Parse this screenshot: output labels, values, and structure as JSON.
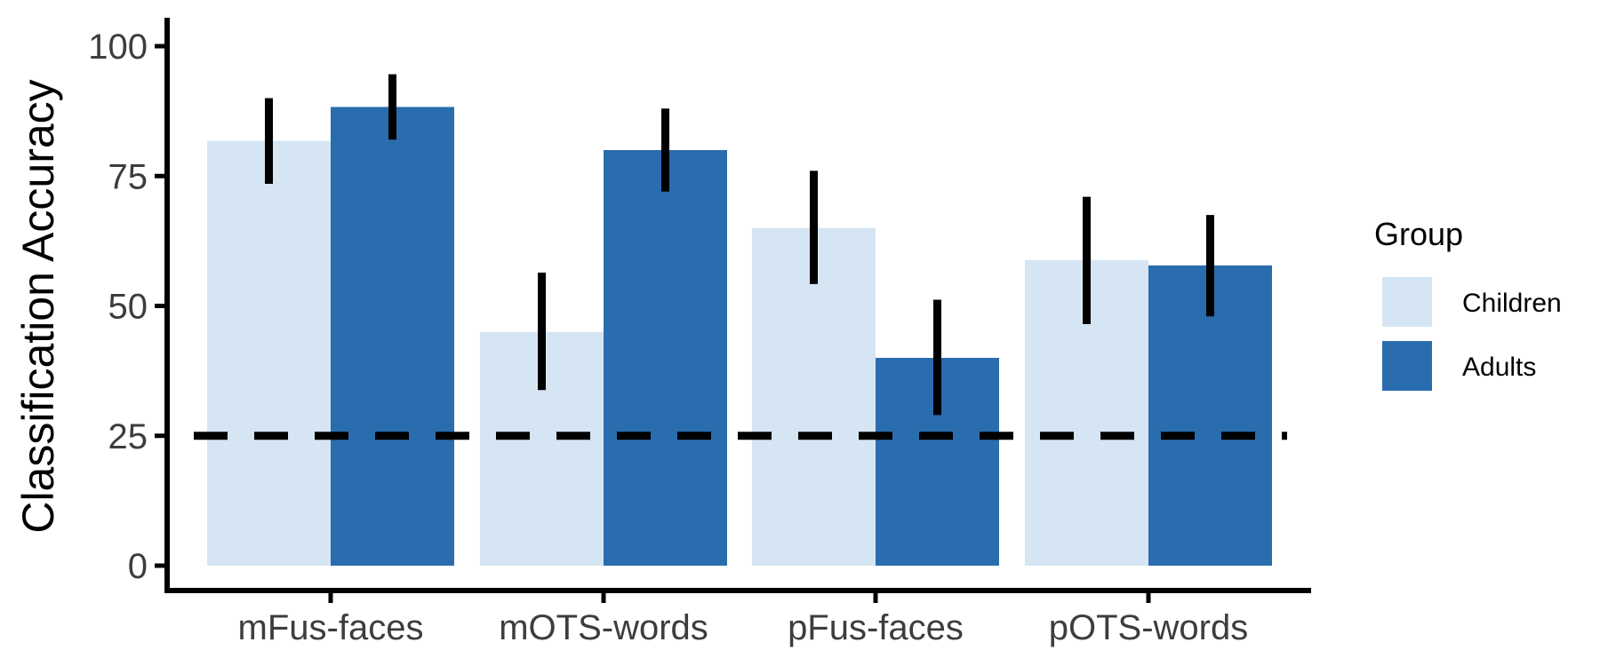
{
  "chart_data": {
    "type": "bar",
    "title": "",
    "xlabel": "",
    "ylabel": "Classification Accuracy",
    "ylim": [
      0,
      105
    ],
    "yticks": [
      0,
      25,
      50,
      75,
      100
    ],
    "categories": [
      "mFus-faces",
      "mOTS-words",
      "pFus-faces",
      "pOTS-words"
    ],
    "series": [
      {
        "name": "Children",
        "color": "#d6e5f4",
        "values": [
          81.8,
          45.0,
          65.0,
          58.8
        ],
        "error_low": [
          73.5,
          33.8,
          54.2,
          46.5
        ],
        "error_high": [
          90.0,
          56.4,
          76.0,
          71.0
        ]
      },
      {
        "name": "Adults",
        "color": "#2a6daf",
        "values": [
          88.3,
          80.0,
          40.0,
          57.8
        ],
        "error_low": [
          82.0,
          72.0,
          29.0,
          48.0
        ],
        "error_high": [
          94.6,
          88.0,
          51.2,
          67.5
        ]
      }
    ],
    "chance_line": 25,
    "grid": false,
    "legend": {
      "title": "Group",
      "position": "right"
    }
  }
}
